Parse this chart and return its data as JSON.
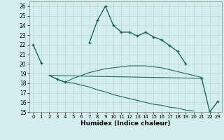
{
  "xlabel": "Humidex (Indice chaleur)",
  "bg_color": "#d4eeee",
  "line_color": "#1a6b5a",
  "grid_color": "#b8d8d8",
  "xlim": [
    -0.5,
    23.5
  ],
  "ylim": [
    15,
    26.5
  ],
  "yticks": [
    15,
    16,
    17,
    18,
    19,
    20,
    21,
    22,
    23,
    24,
    25,
    26
  ],
  "xticks": [
    0,
    1,
    2,
    3,
    4,
    5,
    6,
    7,
    8,
    9,
    10,
    11,
    12,
    13,
    14,
    15,
    16,
    17,
    18,
    19,
    20,
    21,
    22,
    23
  ],
  "line1_x": [
    0,
    1,
    2,
    3,
    4,
    5,
    6,
    7,
    8,
    9,
    10,
    11,
    12,
    13,
    14,
    15,
    16,
    17,
    18,
    19,
    20,
    21,
    22,
    23
  ],
  "line1_y": [
    22.0,
    20.1,
    null,
    18.4,
    18.1,
    null,
    null,
    22.2,
    24.5,
    26.0,
    24.0,
    23.3,
    23.3,
    22.9,
    23.3,
    22.8,
    22.5,
    21.9,
    21.3,
    20.0,
    null,
    18.5,
    15.0,
    16.1
  ],
  "line2_x": [
    2,
    3,
    4,
    5,
    6,
    7,
    8,
    9,
    10,
    11,
    12,
    13,
    14,
    15,
    16,
    17,
    18,
    19,
    20,
    21
  ],
  "line2_y": [
    18.8,
    18.4,
    18.1,
    18.5,
    18.8,
    19.1,
    19.3,
    19.5,
    19.6,
    19.7,
    19.8,
    19.8,
    19.8,
    19.7,
    19.6,
    19.4,
    19.2,
    19.0,
    18.8,
    18.6
  ],
  "line3_x": [
    2,
    3,
    4,
    5,
    6,
    7,
    8,
    9,
    10,
    11,
    12,
    13,
    14,
    15,
    16,
    17,
    18,
    19,
    20
  ],
  "line3_y": [
    18.8,
    18.4,
    18.1,
    18.0,
    17.8,
    17.6,
    17.3,
    17.1,
    16.8,
    16.6,
    16.4,
    16.2,
    16.0,
    15.8,
    15.7,
    15.5,
    15.4,
    15.2,
    15.1
  ],
  "line4_x": [
    2,
    21
  ],
  "line4_y": [
    18.8,
    18.5
  ]
}
